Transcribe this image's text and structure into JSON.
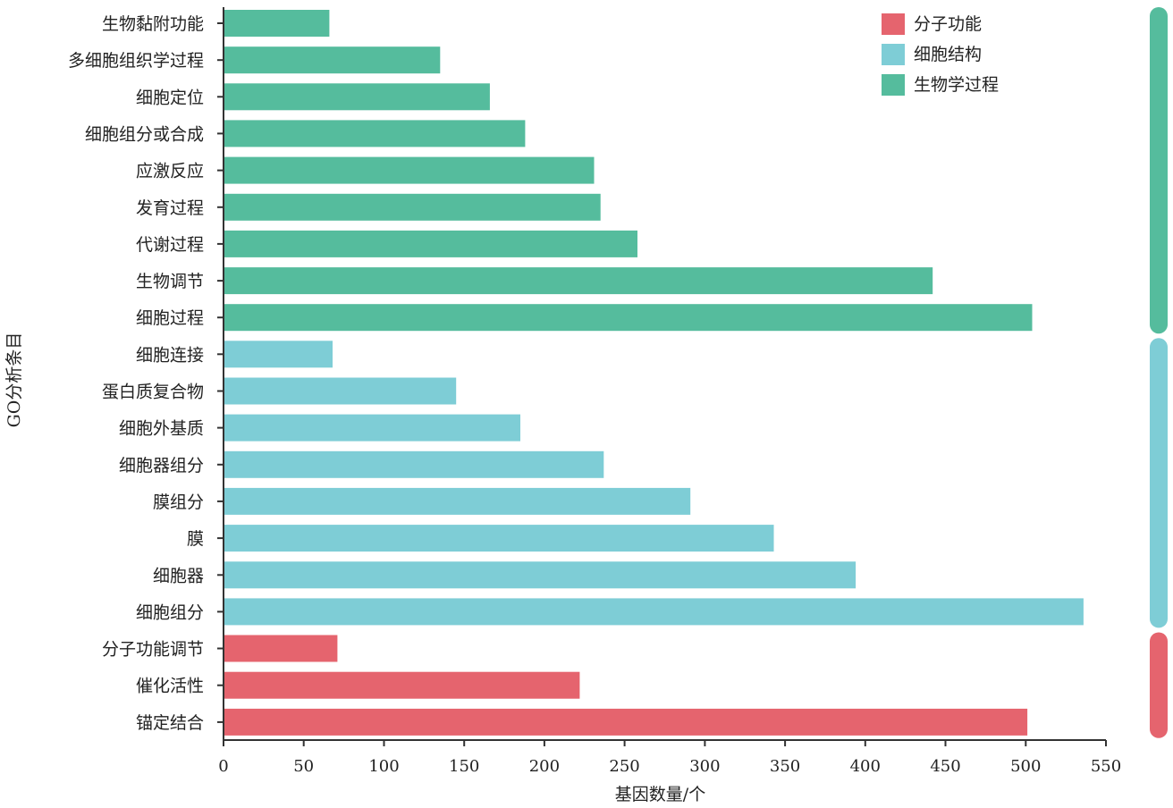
{
  "chart_data": {
    "type": "bar",
    "orientation": "horizontal",
    "xlabel": "基因数量/个",
    "ylabel": "GO分析条目",
    "xlim": [
      0,
      550
    ],
    "xticks": [
      0,
      50,
      100,
      150,
      200,
      250,
      300,
      350,
      400,
      450,
      500,
      550
    ],
    "grid": false,
    "legend_position": "top-right",
    "group_bar_side": "right",
    "groups": [
      {
        "name": "分子功能",
        "color": "#e5646e"
      },
      {
        "name": "细胞结构",
        "color": "#7ecdd6"
      },
      {
        "name": "生物学过程",
        "color": "#55bc9d"
      }
    ],
    "categories": [
      {
        "label": "生物黏附功能",
        "value": 66,
        "group": "生物学过程"
      },
      {
        "label": "多细胞组织学过程",
        "value": 135,
        "group": "生物学过程"
      },
      {
        "label": "细胞定位",
        "value": 166,
        "group": "生物学过程"
      },
      {
        "label": "细胞组分或合成",
        "value": 188,
        "group": "生物学过程"
      },
      {
        "label": "应激反应",
        "value": 231,
        "group": "生物学过程"
      },
      {
        "label": "发育过程",
        "value": 235,
        "group": "生物学过程"
      },
      {
        "label": "代谢过程",
        "value": 258,
        "group": "生物学过程"
      },
      {
        "label": "生物调节",
        "value": 442,
        "group": "生物学过程"
      },
      {
        "label": "细胞过程",
        "value": 504,
        "group": "生物学过程"
      },
      {
        "label": "细胞连接",
        "value": 68,
        "group": "细胞结构"
      },
      {
        "label": "蛋白质复合物",
        "value": 145,
        "group": "细胞结构"
      },
      {
        "label": "细胞外基质",
        "value": 185,
        "group": "细胞结构"
      },
      {
        "label": "细胞器组分",
        "value": 237,
        "group": "细胞结构"
      },
      {
        "label": "膜组分",
        "value": 291,
        "group": "细胞结构"
      },
      {
        "label": "膜",
        "value": 343,
        "group": "细胞结构"
      },
      {
        "label": "细胞器",
        "value": 394,
        "group": "细胞结构"
      },
      {
        "label": "细胞组分",
        "value": 536,
        "group": "细胞结构"
      },
      {
        "label": "分子功能调节",
        "value": 71,
        "group": "分子功能"
      },
      {
        "label": "催化活性",
        "value": 222,
        "group": "分子功能"
      },
      {
        "label": "锚定结合",
        "value": 501,
        "group": "分子功能"
      }
    ]
  }
}
